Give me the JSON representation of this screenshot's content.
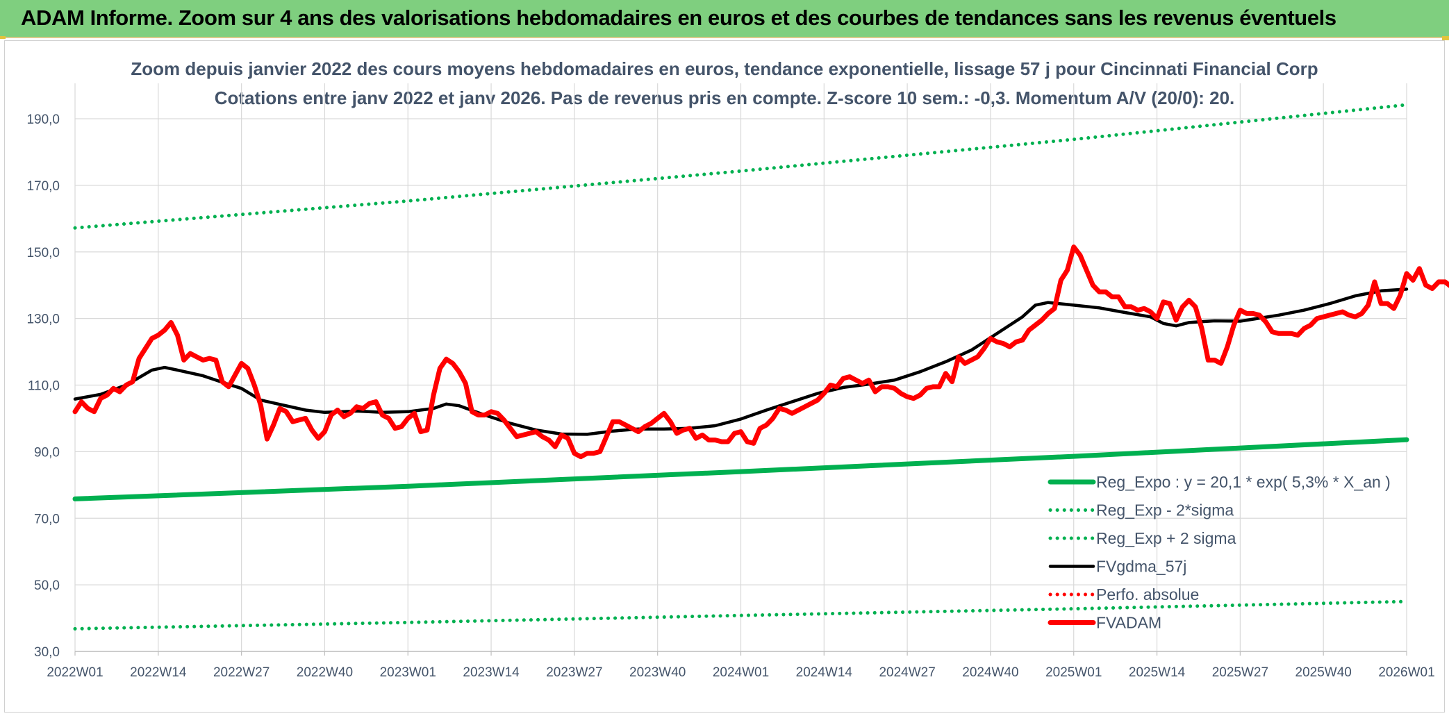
{
  "banner": {
    "title": "ADAM Informe. Zoom sur 4 ans des valorisations hebdomadaires en euros et des courbes de tendances sans les revenus éventuels"
  },
  "chart_data": {
    "type": "line",
    "title": "Zoom depuis janvier 2022 des cours moyens hebdomadaires en euros, tendance exponentielle, lissage 57 j pour Cincinnati Financial Corp",
    "subtitle": "Cotations entre janv 2022 et janv 2026. Pas de revenus pris en compte. Z-score 10 sem.: -0,3. Momentum A/V (20/0): 20.",
    "xlabel": "",
    "ylabel": "",
    "ylim": [
      30,
      200
    ],
    "yticks": [
      "30,0",
      "50,0",
      "70,0",
      "90,0",
      "110,0",
      "130,0",
      "150,0",
      "170,0",
      "190,0"
    ],
    "xlim": [
      0,
      208
    ],
    "xticks": [
      {
        "x": 0,
        "label": "2022W01"
      },
      {
        "x": 13,
        "label": "2022W14"
      },
      {
        "x": 26,
        "label": "2022W27"
      },
      {
        "x": 39,
        "label": "2022W40"
      },
      {
        "x": 52,
        "label": "2023W01"
      },
      {
        "x": 65,
        "label": "2023W14"
      },
      {
        "x": 78,
        "label": "2023W27"
      },
      {
        "x": 91,
        "label": "2023W40"
      },
      {
        "x": 104,
        "label": "2024W01"
      },
      {
        "x": 117,
        "label": "2024W14"
      },
      {
        "x": 130,
        "label": "2024W27"
      },
      {
        "x": 143,
        "label": "2024W40"
      },
      {
        "x": 156,
        "label": "2025W01"
      },
      {
        "x": 169,
        "label": "2025W14"
      },
      {
        "x": 182,
        "label": "2025W27"
      },
      {
        "x": 195,
        "label": "2025W40"
      },
      {
        "x": 208,
        "label": "2026W01"
      }
    ],
    "grid": true,
    "legend_position": "bottom-right",
    "series": [
      {
        "name": "Reg_Expo : y = 20,1 * exp( 5,3% *  X_an )",
        "color": "#00b050",
        "style": "solid-thick",
        "points": [
          [
            0,
            75.8
          ],
          [
            52,
            79.6
          ],
          [
            104,
            84.0
          ],
          [
            156,
            88.6
          ],
          [
            208,
            93.6
          ]
        ]
      },
      {
        "name": "Reg_Exp - 2*sigma",
        "color": "#00b050",
        "style": "dotted",
        "points": [
          [
            0,
            36.8
          ],
          [
            52,
            38.7
          ],
          [
            104,
            40.8
          ],
          [
            156,
            42.8
          ],
          [
            208,
            45.0
          ]
        ]
      },
      {
        "name": "Reg_Exp + 2 sigma",
        "color": "#00b050",
        "style": "dotted",
        "points": [
          [
            0,
            157.2
          ],
          [
            52,
            165.3
          ],
          [
            104,
            174.3
          ],
          [
            156,
            183.8
          ],
          [
            208,
            194.2
          ]
        ]
      },
      {
        "name": "FVgdma_57j",
        "color": "#000000",
        "style": "solid",
        "points": [
          [
            0,
            105.8
          ],
          [
            4,
            107.2
          ],
          [
            8,
            110.0
          ],
          [
            12,
            114.5
          ],
          [
            14,
            115.3
          ],
          [
            16,
            114.5
          ],
          [
            20,
            112.8
          ],
          [
            24,
            110.2
          ],
          [
            26,
            109.0
          ],
          [
            29,
            105.5
          ],
          [
            32,
            104.2
          ],
          [
            36,
            102.5
          ],
          [
            39,
            101.8
          ],
          [
            44,
            102.2
          ],
          [
            48,
            101.8
          ],
          [
            52,
            102.0
          ],
          [
            56,
            103.0
          ],
          [
            58,
            104.3
          ],
          [
            60,
            103.8
          ],
          [
            64,
            101.0
          ],
          [
            68,
            98.5
          ],
          [
            72,
            96.5
          ],
          [
            76,
            95.3
          ],
          [
            80,
            95.2
          ],
          [
            84,
            96.2
          ],
          [
            88,
            96.8
          ],
          [
            92,
            96.8
          ],
          [
            96,
            97.0
          ],
          [
            100,
            97.8
          ],
          [
            104,
            99.8
          ],
          [
            108,
            102.5
          ],
          [
            112,
            105.0
          ],
          [
            116,
            107.5
          ],
          [
            120,
            109.3
          ],
          [
            124,
            110.3
          ],
          [
            128,
            111.5
          ],
          [
            132,
            114.0
          ],
          [
            136,
            117.0
          ],
          [
            140,
            120.5
          ],
          [
            144,
            125.5
          ],
          [
            148,
            130.5
          ],
          [
            150,
            134.0
          ],
          [
            152,
            134.8
          ],
          [
            156,
            134.0
          ],
          [
            160,
            133.2
          ],
          [
            164,
            131.8
          ],
          [
            168,
            130.5
          ],
          [
            170,
            128.5
          ],
          [
            172,
            127.8
          ],
          [
            174,
            128.8
          ],
          [
            178,
            129.3
          ],
          [
            182,
            129.2
          ],
          [
            184,
            129.8
          ],
          [
            188,
            131.0
          ],
          [
            192,
            132.5
          ],
          [
            196,
            134.5
          ],
          [
            200,
            136.8
          ],
          [
            204,
            138.3
          ],
          [
            208,
            138.8
          ]
        ]
      },
      {
        "name": "Perfo. absolue",
        "color": "#ff0000",
        "style": "dotted",
        "points": []
      },
      {
        "name": "FVADAM",
        "color": "#ff0000",
        "style": "solid-thick",
        "points": [
          [
            0,
            102.0
          ],
          [
            1,
            105.0
          ],
          [
            2,
            103.0
          ],
          [
            3,
            102.0
          ],
          [
            4,
            106.0
          ],
          [
            5,
            107.0
          ],
          [
            6,
            109.0
          ],
          [
            7,
            108.0
          ],
          [
            8,
            110.0
          ],
          [
            9,
            111.0
          ],
          [
            10,
            118.0
          ],
          [
            11,
            121.0
          ],
          [
            12,
            124.0
          ],
          [
            13,
            125.0
          ],
          [
            14,
            126.5
          ],
          [
            15,
            128.8
          ],
          [
            16,
            125.0
          ],
          [
            17,
            117.5
          ],
          [
            18,
            119.5
          ],
          [
            19,
            118.5
          ],
          [
            20,
            117.5
          ],
          [
            21,
            118.0
          ],
          [
            22,
            117.5
          ],
          [
            23,
            111.0
          ],
          [
            24,
            109.5
          ],
          [
            25,
            113.0
          ],
          [
            26,
            116.5
          ],
          [
            27,
            115.0
          ],
          [
            28,
            110.0
          ],
          [
            29,
            104.0
          ],
          [
            30,
            93.8
          ],
          [
            31,
            98.0
          ],
          [
            32,
            103.0
          ],
          [
            33,
            102.0
          ],
          [
            34,
            99.0
          ],
          [
            35,
            99.5
          ],
          [
            36,
            100.0
          ],
          [
            37,
            96.5
          ],
          [
            38,
            94.0
          ],
          [
            39,
            96.0
          ],
          [
            40,
            101.0
          ],
          [
            41,
            102.5
          ],
          [
            42,
            100.5
          ],
          [
            43,
            101.5
          ],
          [
            44,
            103.5
          ],
          [
            45,
            103.0
          ],
          [
            46,
            104.5
          ],
          [
            47,
            105.0
          ],
          [
            48,
            101.0
          ],
          [
            49,
            100.0
          ],
          [
            50,
            97.0
          ],
          [
            51,
            97.5
          ],
          [
            52,
            100.0
          ],
          [
            53,
            101.5
          ],
          [
            54,
            96.0
          ],
          [
            55,
            96.5
          ],
          [
            56,
            107.0
          ],
          [
            57,
            115.0
          ],
          [
            58,
            117.8
          ],
          [
            59,
            116.5
          ],
          [
            60,
            114.0
          ],
          [
            61,
            110.5
          ],
          [
            62,
            102.0
          ],
          [
            63,
            101.0
          ],
          [
            64,
            101.0
          ],
          [
            65,
            102.0
          ],
          [
            66,
            101.5
          ],
          [
            67,
            99.5
          ],
          [
            68,
            97.0
          ],
          [
            69,
            94.5
          ],
          [
            70,
            95.0
          ],
          [
            71,
            95.5
          ],
          [
            72,
            96.0
          ],
          [
            73,
            94.5
          ],
          [
            74,
            93.5
          ],
          [
            75,
            91.5
          ],
          [
            76,
            95.0
          ],
          [
            77,
            94.0
          ],
          [
            78,
            89.5
          ],
          [
            79,
            88.5
          ],
          [
            80,
            89.5
          ],
          [
            81,
            89.5
          ],
          [
            82,
            90.0
          ],
          [
            83,
            94.5
          ],
          [
            84,
            99.0
          ],
          [
            85,
            99.0
          ],
          [
            86,
            98.0
          ],
          [
            87,
            97.0
          ],
          [
            88,
            96.0
          ],
          [
            89,
            97.5
          ],
          [
            90,
            98.5
          ],
          [
            91,
            100.0
          ],
          [
            92,
            101.5
          ],
          [
            93,
            99.0
          ],
          [
            94,
            95.5
          ],
          [
            95,
            96.5
          ],
          [
            96,
            97.0
          ],
          [
            97,
            94.0
          ],
          [
            98,
            95.0
          ],
          [
            99,
            93.5
          ],
          [
            100,
            93.5
          ],
          [
            101,
            93.0
          ],
          [
            102,
            93.0
          ],
          [
            103,
            95.5
          ],
          [
            104,
            96.0
          ],
          [
            105,
            93.0
          ],
          [
            106,
            92.5
          ],
          [
            107,
            97.0
          ],
          [
            108,
            98.0
          ],
          [
            109,
            100.0
          ],
          [
            110,
            103.0
          ],
          [
            111,
            102.5
          ],
          [
            112,
            101.5
          ],
          [
            113,
            102.5
          ],
          [
            114,
            103.5
          ],
          [
            115,
            104.5
          ],
          [
            116,
            105.5
          ],
          [
            117,
            107.5
          ],
          [
            118,
            110.0
          ],
          [
            119,
            109.5
          ],
          [
            120,
            112.0
          ],
          [
            121,
            112.5
          ],
          [
            122,
            111.5
          ],
          [
            123,
            110.5
          ],
          [
            124,
            111.5
          ],
          [
            125,
            108.0
          ],
          [
            126,
            109.5
          ],
          [
            127,
            109.5
          ],
          [
            128,
            109.0
          ],
          [
            129,
            107.5
          ],
          [
            130,
            106.5
          ],
          [
            131,
            106.0
          ],
          [
            132,
            107.0
          ],
          [
            133,
            109.0
          ],
          [
            134,
            109.5
          ],
          [
            135,
            109.5
          ],
          [
            136,
            113.5
          ],
          [
            137,
            111.0
          ],
          [
            138,
            118.5
          ],
          [
            139,
            116.5
          ],
          [
            140,
            117.5
          ],
          [
            141,
            118.5
          ],
          [
            142,
            121.0
          ],
          [
            143,
            124.0
          ],
          [
            144,
            123.0
          ],
          [
            145,
            122.5
          ],
          [
            146,
            121.5
          ],
          [
            147,
            123.0
          ],
          [
            148,
            123.5
          ],
          [
            149,
            126.5
          ],
          [
            150,
            128.0
          ],
          [
            151,
            129.5
          ],
          [
            152,
            131.5
          ],
          [
            153,
            133.0
          ],
          [
            154,
            141.5
          ],
          [
            155,
            144.5
          ],
          [
            156,
            151.5
          ],
          [
            157,
            149.0
          ],
          [
            158,
            144.5
          ],
          [
            159,
            140.0
          ],
          [
            160,
            138.0
          ],
          [
            161,
            138.0
          ],
          [
            162,
            136.5
          ],
          [
            163,
            136.5
          ],
          [
            164,
            133.5
          ],
          [
            165,
            133.5
          ],
          [
            166,
            132.5
          ],
          [
            167,
            133.0
          ],
          [
            168,
            132.0
          ],
          [
            169,
            130.0
          ],
          [
            170,
            135.0
          ],
          [
            171,
            134.5
          ],
          [
            172,
            129.5
          ],
          [
            173,
            133.5
          ],
          [
            174,
            135.5
          ],
          [
            175,
            133.5
          ],
          [
            176,
            127.0
          ],
          [
            177,
            117.5
          ],
          [
            178,
            117.5
          ],
          [
            179,
            116.5
          ],
          [
            180,
            121.5
          ],
          [
            181,
            128.0
          ],
          [
            182,
            132.5
          ],
          [
            183,
            131.5
          ],
          [
            184,
            131.5
          ],
          [
            185,
            131.0
          ],
          [
            186,
            129.0
          ],
          [
            187,
            126.0
          ],
          [
            188,
            125.5
          ],
          [
            189,
            125.5
          ],
          [
            190,
            125.5
          ],
          [
            191,
            125.0
          ],
          [
            192,
            127.0
          ],
          [
            193,
            128.0
          ],
          [
            194,
            130.0
          ],
          [
            195,
            130.5
          ],
          [
            196,
            131.0
          ],
          [
            197,
            131.5
          ],
          [
            198,
            132.0
          ],
          [
            199,
            131.0
          ],
          [
            200,
            130.5
          ],
          [
            201,
            131.5
          ],
          [
            202,
            134.0
          ],
          [
            203,
            141.0
          ],
          [
            204,
            134.5
          ],
          [
            205,
            134.5
          ],
          [
            206,
            133.0
          ],
          [
            207,
            137.0
          ],
          [
            208,
            143.5
          ],
          [
            209,
            141.5
          ],
          [
            210,
            145.0
          ],
          [
            211,
            140.0
          ],
          [
            212,
            139.0
          ],
          [
            213,
            141.0
          ],
          [
            214,
            141.0
          ],
          [
            215,
            139.5
          ]
        ]
      }
    ]
  }
}
